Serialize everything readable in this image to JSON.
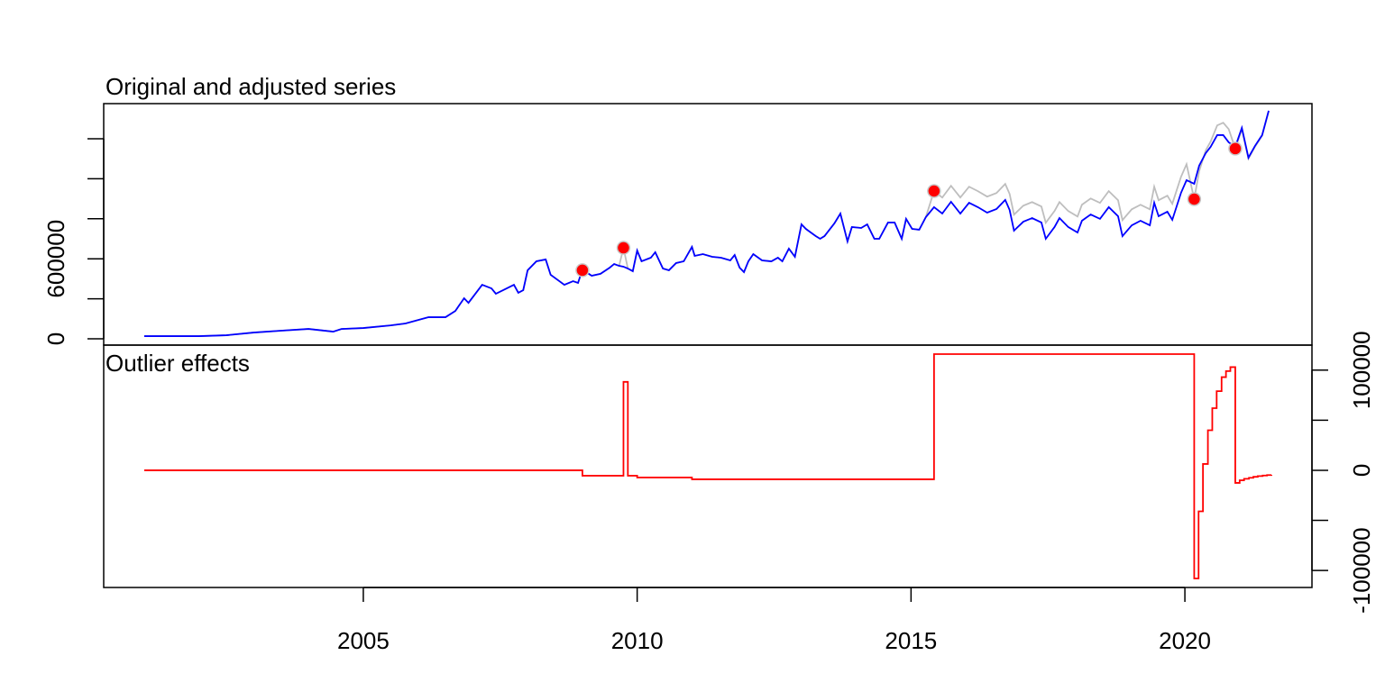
{
  "chart_data": [
    {
      "type": "line",
      "title": "Original and adjusted series",
      "y_axis_side": "left",
      "xlim": [
        2000.26,
        2022.32
      ],
      "ylim": [
        -47000,
        1763000
      ],
      "yticks": [
        0,
        300000,
        600000,
        900000,
        1200000,
        1500000
      ],
      "labeled_ytick_indices": [
        0,
        2
      ],
      "x": [
        2001.0,
        2001.5,
        2002.0,
        2002.5,
        2003.0,
        2003.5,
        2004.0,
        2004.45,
        2004.6,
        2005.0,
        2005.5,
        2005.77,
        2006.19,
        2006.5,
        2006.68,
        2006.84,
        2006.92,
        2007.17,
        2007.34,
        2007.42,
        2007.75,
        2007.83,
        2007.92,
        2008.0,
        2008.16,
        2008.33,
        2008.42,
        2008.58,
        2008.67,
        2008.83,
        2008.92,
        2009.0,
        2009.17,
        2009.33,
        2009.5,
        2009.58,
        2009.67,
        2009.75,
        2009.83,
        2009.92,
        2010.0,
        2010.08,
        2010.25,
        2010.33,
        2010.47,
        2010.58,
        2010.71,
        2010.85,
        2011.0,
        2011.05,
        2011.2,
        2011.37,
        2011.53,
        2011.7,
        2011.78,
        2011.87,
        2011.95,
        2012.03,
        2012.12,
        2012.28,
        2012.45,
        2012.57,
        2012.65,
        2012.77,
        2012.88,
        2013.0,
        2013.08,
        2013.26,
        2013.34,
        2013.42,
        2013.6,
        2013.71,
        2013.84,
        2013.92,
        2014.09,
        2014.2,
        2014.33,
        2014.42,
        2014.58,
        2014.7,
        2014.83,
        2014.91,
        2015.02,
        2015.15,
        2015.27,
        2015.42,
        2015.57,
        2015.73,
        2015.9,
        2016.06,
        2016.22,
        2016.39,
        2016.56,
        2016.72,
        2016.8,
        2016.88,
        2017.05,
        2017.21,
        2017.38,
        2017.46,
        2017.62,
        2017.71,
        2017.87,
        2018.04,
        2018.12,
        2018.28,
        2018.45,
        2018.61,
        2018.78,
        2018.86,
        2019.03,
        2019.19,
        2019.36,
        2019.44,
        2019.52,
        2019.68,
        2019.77,
        2019.93,
        2020.03,
        2020.17,
        2020.26,
        2020.38,
        2020.47,
        2020.59,
        2020.7,
        2020.8,
        2020.92,
        2021.04,
        2021.16,
        2021.28,
        2021.41,
        2021.53
      ],
      "series": [
        {
          "color": "#bebebe",
          "values": [
            20000,
            20000,
            20000,
            27000,
            47000,
            61000,
            74000,
            54000,
            74000,
            81000,
            101000,
            115000,
            162000,
            162000,
            209000,
            304000,
            270000,
            405000,
            378000,
            338000,
            405000,
            345000,
            365000,
            514000,
            581000,
            595000,
            480000,
            432000,
            405000,
            432000,
            419000,
            514000,
            473000,
            487000,
            534000,
            561000,
            547000,
            682000,
            527000,
            507000,
            662000,
            581000,
            608000,
            649000,
            527000,
            514000,
            568000,
            581000,
            689000,
            622000,
            635000,
            615000,
            608000,
            588000,
            628000,
            534000,
            500000,
            581000,
            635000,
            588000,
            581000,
            608000,
            581000,
            676000,
            615000,
            858000,
            824000,
            770000,
            750000,
            770000,
            865000,
            939000,
            730000,
            838000,
            831000,
            858000,
            750000,
            750000,
            872000,
            872000,
            750000,
            899000,
            824000,
            818000,
            912000,
            1108000,
            1059000,
            1147000,
            1059000,
            1140000,
            1107000,
            1066000,
            1093000,
            1161000,
            1086000,
            931000,
            998000,
            1025000,
            992000,
            870000,
            958000,
            1025000,
            958000,
            917000,
            1005000,
            1052000,
            1019000,
            1107000,
            1039000,
            890000,
            971000,
            1005000,
            971000,
            1140000,
            1039000,
            1073000,
            1012000,
            1215000,
            1309000,
            1047000,
            1256000,
            1412000,
            1479000,
            1600000,
            1620000,
            1572000,
            1426000,
            1571000,
            1350000,
            1440000,
            1522000,
            1705000
          ]
        },
        {
          "color": "#0000ff",
          "values": [
            20000,
            20000,
            20000,
            27000,
            47000,
            61000,
            74000,
            54000,
            74000,
            81000,
            101000,
            115000,
            162000,
            162000,
            209000,
            304000,
            270000,
            405000,
            378000,
            338000,
            405000,
            345000,
            365000,
            514000,
            581000,
            595000,
            480000,
            432000,
            405000,
            432000,
            419000,
            519000,
            473000,
            487000,
            534000,
            561000,
            547000,
            541000,
            527000,
            507000,
            662000,
            581000,
            608000,
            649000,
            527000,
            514000,
            568000,
            581000,
            689000,
            622000,
            635000,
            615000,
            608000,
            588000,
            628000,
            534000,
            500000,
            581000,
            635000,
            588000,
            581000,
            608000,
            581000,
            676000,
            615000,
            858000,
            824000,
            770000,
            750000,
            770000,
            865000,
            939000,
            730000,
            838000,
            831000,
            858000,
            750000,
            750000,
            872000,
            872000,
            750000,
            899000,
            824000,
            818000,
            912000,
            987000,
            939000,
            1027000,
            939000,
            1020000,
            987000,
            946000,
            973000,
            1041000,
            966000,
            811000,
            878000,
            905000,
            872000,
            750000,
            838000,
            905000,
            838000,
            797000,
            885000,
            932000,
            899000,
            987000,
            919000,
            770000,
            851000,
            885000,
            851000,
            1020000,
            919000,
            953000,
            892000,
            1095000,
            1189000,
            1162000,
            1297000,
            1392000,
            1439000,
            1527000,
            1527000,
            1473000,
            1439000,
            1581000,
            1358000,
            1446000,
            1527000,
            1710000
          ]
        }
      ],
      "outliers": {
        "color": "#ff0000",
        "x": [
          2009.0,
          2009.75,
          2015.42,
          2020.17,
          2020.92
        ],
        "values": [
          514000,
          682000,
          1108000,
          1047000,
          1426000
        ]
      }
    },
    {
      "type": "step",
      "title": "Outlier effects",
      "y_axis_side": "right",
      "color": "#ff0000",
      "xlim": [
        2000.26,
        2022.32
      ],
      "xticks": [
        2005,
        2010,
        2015,
        2020
      ],
      "ylim": [
        -117000,
        125000
      ],
      "yticks": [
        -100000,
        -50000,
        0,
        50000,
        100000
      ],
      "labeled_ytick_indices": [
        0,
        2,
        4
      ],
      "x": [
        2001.0,
        2009.0,
        2009.75,
        2009.83,
        2010.0,
        2011.0,
        2015.42,
        2020.17,
        2020.25,
        2020.33,
        2020.42,
        2020.5,
        2020.58,
        2020.67,
        2020.75,
        2020.83,
        2020.92,
        2021.0,
        2021.08,
        2021.17,
        2021.25,
        2021.33,
        2021.42,
        2021.5,
        2021.58
      ],
      "values": [
        0,
        -5400,
        88300,
        -5400,
        -7200,
        -9000,
        116000,
        -108000,
        -41000,
        6300,
        40000,
        62000,
        79000,
        93000,
        99000,
        103000,
        -12600,
        -10000,
        -8500,
        -7500,
        -6500,
        -5800,
        -5200,
        -4800,
        -4500
      ]
    }
  ]
}
